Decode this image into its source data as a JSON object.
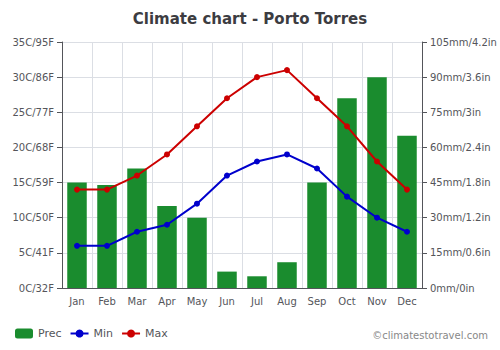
{
  "chart_data": {
    "type": "bar",
    "title": "Climate chart - Porto Torres",
    "categories": [
      "Jan",
      "Feb",
      "Mar",
      "Apr",
      "May",
      "Jun",
      "Jul",
      "Aug",
      "Sep",
      "Oct",
      "Nov",
      "Dec"
    ],
    "series": [
      {
        "name": "Prec",
        "type": "bar",
        "axis": "y2",
        "color": "#1a8c2e",
        "values": [
          45,
          44,
          51,
          35,
          30,
          7,
          5,
          11,
          45,
          81,
          90,
          65
        ]
      },
      {
        "name": "Min",
        "type": "line",
        "color": "#0000cc",
        "marker": "circle",
        "values": [
          6,
          6,
          8,
          9,
          12,
          16,
          18,
          19,
          17,
          13,
          10,
          8
        ]
      },
      {
        "name": "Max",
        "type": "line",
        "color": "#cc0000",
        "marker": "circle",
        "values": [
          14,
          14,
          16,
          19,
          23,
          27,
          30,
          31,
          27,
          23,
          18,
          14
        ]
      }
    ],
    "ylim": [
      0,
      35
    ],
    "yticks": [
      {
        "value": 0,
        "label": "0C/32F"
      },
      {
        "value": 5,
        "label": "5C/41F"
      },
      {
        "value": 10,
        "label": "10C/50F"
      },
      {
        "value": 15,
        "label": "15C/59F"
      },
      {
        "value": 20,
        "label": "20C/68F"
      },
      {
        "value": 25,
        "label": "25C/77F"
      },
      {
        "value": 30,
        "label": "30C/86F"
      },
      {
        "value": 35,
        "label": "35C/95F"
      }
    ],
    "y2lim": [
      0,
      105
    ],
    "y2ticks": [
      {
        "value": 0,
        "label": "0mm/0in"
      },
      {
        "value": 15,
        "label": "15mm/0.6in"
      },
      {
        "value": 30,
        "label": "30mm/1.2in"
      },
      {
        "value": 45,
        "label": "45mm/1.8in"
      },
      {
        "value": 60,
        "label": "60mm/2.4in"
      },
      {
        "value": 75,
        "label": "75mm/3in"
      },
      {
        "value": 90,
        "label": "90mm/3.6in"
      },
      {
        "value": 105,
        "label": "105mm/4.2in"
      }
    ],
    "grid": true,
    "legend": "lower left",
    "annotations": [
      "©climatestotravel.com"
    ]
  }
}
